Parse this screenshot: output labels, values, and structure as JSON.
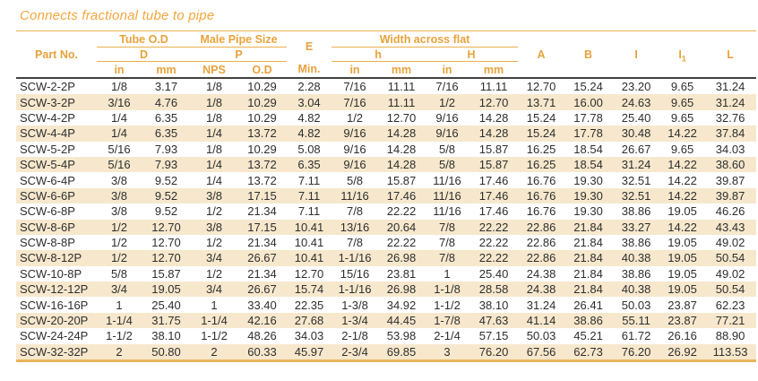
{
  "title": "Connects fractional tube to pipe",
  "colors": {
    "accent_orange": "#E8A23B",
    "title_orange": "#F2A73E",
    "alt_row_cream": "#F7E8CD",
    "header_rule_dark": "#414141",
    "bottom_rule_gold": "#E9B45E",
    "data_text": "#2e2e2e"
  },
  "table": {
    "header": {
      "part_no": "Part No.",
      "tube_od": "Tube O.D",
      "tube_od_sub": "D",
      "male_pipe_size": "Male Pipe Size",
      "male_pipe_sub": "P",
      "e": "E",
      "width_across_flat": "Width across flat",
      "h_lower": "h",
      "h_upper": "H",
      "a": "A",
      "b": "B",
      "i": "I",
      "i1_base": "I",
      "i1_sub": "1",
      "l": "L",
      "units": [
        "in",
        "mm",
        "NPS",
        "O.D",
        "Min.",
        "in",
        "mm",
        "in",
        "mm"
      ]
    },
    "rows": [
      [
        "SCW-2-2P",
        "1/8",
        "3.17",
        "1/8",
        "10.29",
        "2.28",
        "7/16",
        "11.11",
        "7/16",
        "11.11",
        "12.70",
        "15.24",
        "23.20",
        "9.65",
        "31.24"
      ],
      [
        "SCW-3-2P",
        "3/16",
        "4.76",
        "1/8",
        "10.29",
        "3.04",
        "7/16",
        "11.11",
        "1/2",
        "12.70",
        "13.71",
        "16.00",
        "24.63",
        "9.65",
        "31.24"
      ],
      [
        "SCW-4-2P",
        "1/4",
        "6.35",
        "1/8",
        "10.29",
        "4.82",
        "1/2",
        "12.70",
        "9/16",
        "14.28",
        "15.24",
        "17.78",
        "25.40",
        "9.65",
        "32.76"
      ],
      [
        "SCW-4-4P",
        "1/4",
        "6.35",
        "1/4",
        "13.72",
        "4.82",
        "9/16",
        "14.28",
        "9/16",
        "14.28",
        "15.24",
        "17.78",
        "30.48",
        "14.22",
        "37.84"
      ],
      [
        "SCW-5-2P",
        "5/16",
        "7.93",
        "1/8",
        "10.29",
        "5.08",
        "9/16",
        "14.28",
        "5/8",
        "15.87",
        "16.25",
        "18.54",
        "26.67",
        "9.65",
        "34.03"
      ],
      [
        "SCW-5-4P",
        "5/16",
        "7.93",
        "1/4",
        "13.72",
        "6.35",
        "9/16",
        "14.28",
        "5/8",
        "15.87",
        "16.25",
        "18.54",
        "31.24",
        "14.22",
        "38.60"
      ],
      [
        "SCW-6-4P",
        "3/8",
        "9.52",
        "1/4",
        "13.72",
        "7.11",
        "5/8",
        "15.87",
        "11/16",
        "17.46",
        "16.76",
        "19.30",
        "32.51",
        "14.22",
        "39.87"
      ],
      [
        "SCW-6-6P",
        "3/8",
        "9.52",
        "3/8",
        "17.15",
        "7.11",
        "11/16",
        "17.46",
        "11/16",
        "17.46",
        "16.76",
        "19.30",
        "32.51",
        "14.22",
        "39.87"
      ],
      [
        "SCW-6-8P",
        "3/8",
        "9.52",
        "1/2",
        "21.34",
        "7.11",
        "7/8",
        "22.22",
        "11/16",
        "17.46",
        "16.76",
        "19.30",
        "38.86",
        "19.05",
        "46.26"
      ],
      [
        "SCW-8-6P",
        "1/2",
        "12.70",
        "3/8",
        "17.15",
        "10.41",
        "13/16",
        "20.64",
        "7/8",
        "22.22",
        "22.86",
        "21.84",
        "33.27",
        "14.22",
        "43.43"
      ],
      [
        "SCW-8-8P",
        "1/2",
        "12.70",
        "1/2",
        "21.34",
        "10.41",
        "7/8",
        "22.22",
        "7/8",
        "22.22",
        "22.86",
        "21.84",
        "38.86",
        "19.05",
        "49.02"
      ],
      [
        "SCW-8-12P",
        "1/2",
        "12.70",
        "3/4",
        "26.67",
        "10.41",
        "1-1/16",
        "26.98",
        "7/8",
        "22.22",
        "22.86",
        "21.84",
        "40.38",
        "19.05",
        "50.54"
      ],
      [
        "SCW-10-8P",
        "5/8",
        "15.87",
        "1/2",
        "21.34",
        "12.70",
        "15/16",
        "23.81",
        "1",
        "25.40",
        "24.38",
        "21.84",
        "38.86",
        "19.05",
        "49.02"
      ],
      [
        "SCW-12-12P",
        "3/4",
        "19.05",
        "3/4",
        "26.67",
        "15.74",
        "1-1/16",
        "26.98",
        "1-1/8",
        "28.58",
        "24.38",
        "21.84",
        "40.38",
        "19.05",
        "50.54"
      ],
      [
        "SCW-16-16P",
        "1",
        "25.40",
        "1",
        "33.40",
        "22.35",
        "1-3/8",
        "34.92",
        "1-1/2",
        "38.10",
        "31.24",
        "26.41",
        "50.03",
        "23.87",
        "62.23"
      ],
      [
        "SCW-20-20P",
        "1-1/4",
        "31.75",
        "1-1/4",
        "42.16",
        "27.68",
        "1-3/4",
        "44.45",
        "1-7/8",
        "47.63",
        "41.14",
        "38.86",
        "55.11",
        "23.87",
        "77.21"
      ],
      [
        "SCW-24-24P",
        "1-1/2",
        "38.10",
        "1-1/2",
        "48.26",
        "34.03",
        "2-1/8",
        "53.98",
        "2-1/4",
        "57.15",
        "50.03",
        "45.21",
        "61.72",
        "26.16",
        "88.90"
      ],
      [
        "SCW-32-32P",
        "2",
        "50.80",
        "2",
        "60.33",
        "45.97",
        "2-3/4",
        "69.85",
        "3",
        "76.20",
        "67.56",
        "62.73",
        "76.20",
        "26.92",
        "113.53"
      ]
    ]
  }
}
